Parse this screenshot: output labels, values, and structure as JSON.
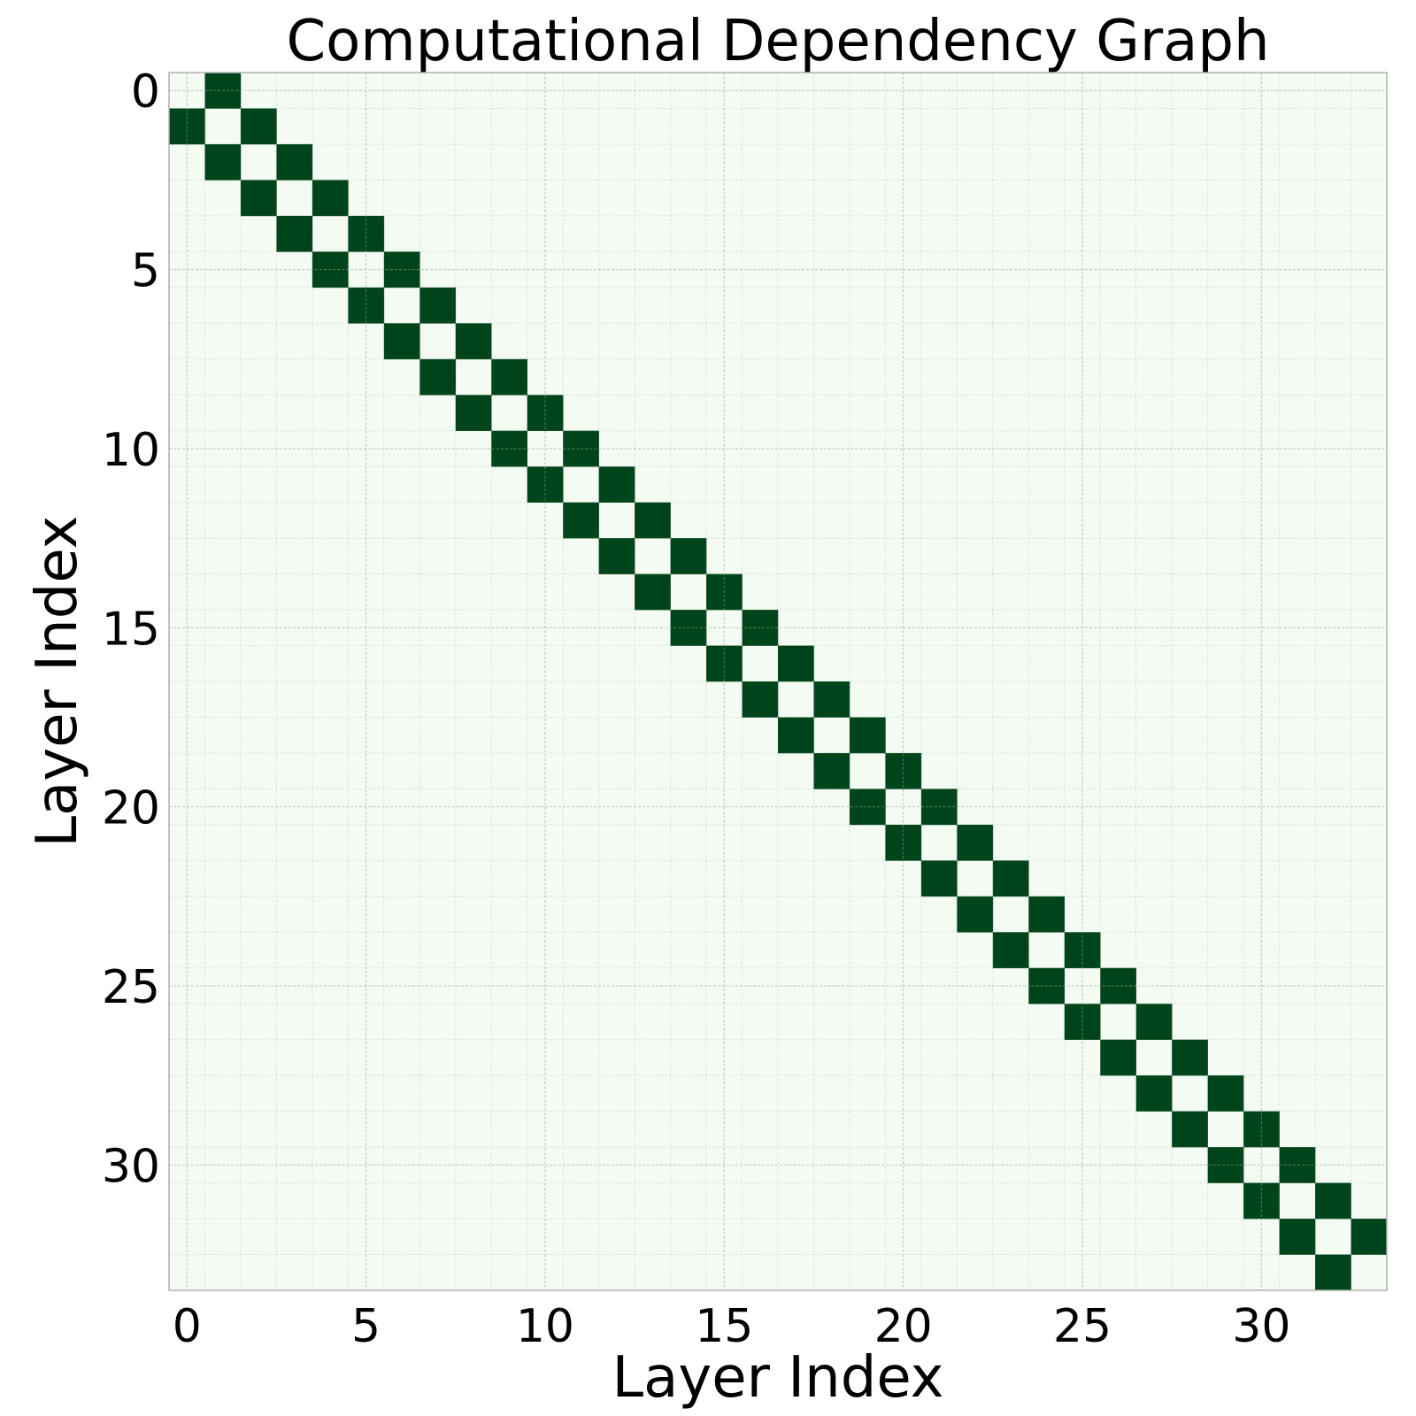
{
  "chart_data": {
    "type": "heatmap",
    "title": "Computational Dependency Graph",
    "xlabel": "Layer Index",
    "ylabel": "Layer Index",
    "n": 34,
    "x_ticks": [
      0,
      5,
      10,
      15,
      20,
      25,
      30
    ],
    "y_ticks": [
      0,
      5,
      10,
      15,
      20,
      25,
      30
    ],
    "xlim": [
      -0.5,
      33.5
    ],
    "ylim": [
      33.5,
      -0.5
    ],
    "grid": true,
    "pattern": "adjacency: cell (i, j) = 1 when |i - j| = 1, otherwise 0",
    "colors": {
      "zero": "#f4fbf2",
      "one": "#00441b",
      "grid": "#8fa88f"
    }
  }
}
